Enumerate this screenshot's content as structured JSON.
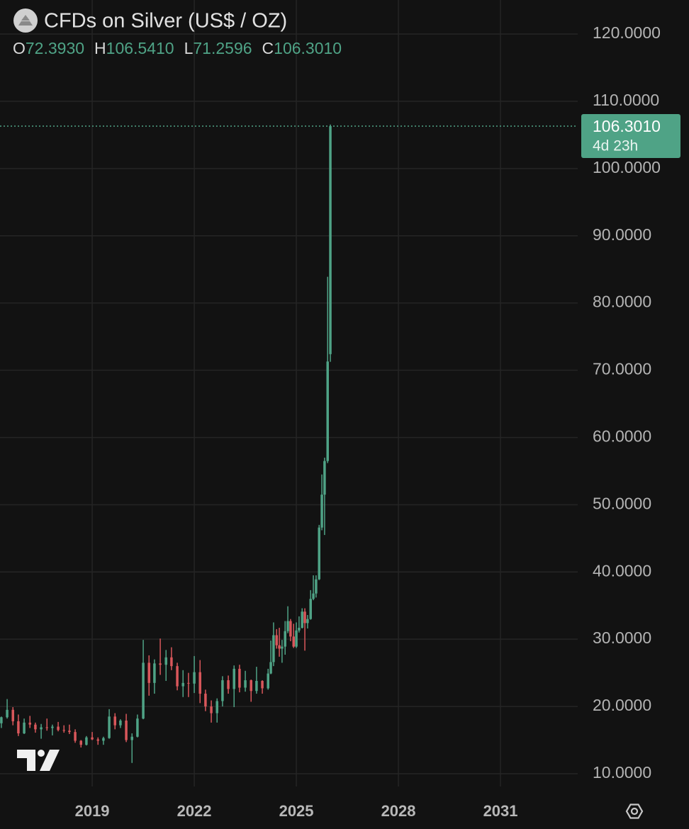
{
  "chart_data": {
    "type": "candlestick",
    "title": "CFDs on Silver (US$ / OZ)",
    "ohlc_legend": [
      {
        "key": "O",
        "value": 72.393,
        "label": "72.3930"
      },
      {
        "key": "H",
        "value": 106.541,
        "label": "106.5410"
      },
      {
        "key": "L",
        "value": 71.2596,
        "label": "71.2596"
      },
      {
        "key": "C",
        "value": 106.301,
        "label": "106.3010"
      }
    ],
    "last_price": {
      "value": 106.301,
      "label": "106.3010"
    },
    "countdown": "4d 23h",
    "up_color": "#4fa386",
    "down_color": "#d9575b",
    "grid": true,
    "x": [
      2016.33,
      2016.5,
      2016.67,
      2016.83,
      2017.0,
      2017.17,
      2017.33,
      2017.5,
      2017.67,
      2017.83,
      2018.0,
      2018.17,
      2018.33,
      2018.5,
      2018.67,
      2018.83,
      2019.0,
      2019.17,
      2019.33,
      2019.5,
      2019.67,
      2019.83,
      2020.0,
      2020.17,
      2020.33,
      2020.5,
      2020.67,
      2020.83,
      2021.0,
      2021.17,
      2021.33,
      2021.5,
      2021.67,
      2021.83,
      2022.0,
      2022.17,
      2022.33,
      2022.5,
      2022.67,
      2022.83,
      2023.0,
      2023.17,
      2023.33,
      2023.5,
      2023.67,
      2023.83,
      2024.0,
      2024.17,
      2024.25,
      2024.33,
      2024.42,
      2024.5,
      2024.58,
      2024.67,
      2024.75,
      2024.83,
      2024.92,
      2025.0,
      2025.08,
      2025.17,
      2025.25,
      2025.33,
      2025.42,
      2025.5,
      2025.58,
      2025.67,
      2025.75,
      2025.83,
      2025.92,
      2026.0
    ],
    "open": [
      17.5,
      18.4,
      19.5,
      17.8,
      16.0,
      17.6,
      17.3,
      16.6,
      16.9,
      16.8,
      17.0,
      16.5,
      16.4,
      16.2,
      14.9,
      14.3,
      15.4,
      15.1,
      14.9,
      15.3,
      18.5,
      17.2,
      17.9,
      15.0,
      15.5,
      18.2,
      26.5,
      23.5,
      26.4,
      26.2,
      27.3,
      26.0,
      23.0,
      23.5,
      23.4,
      25.1,
      21.9,
      20.0,
      19.0,
      20.8,
      23.9,
      22.6,
      25.6,
      22.8,
      23.9,
      22.3,
      23.8,
      22.7,
      24.9,
      26.6,
      30.6,
      29.1,
      28.6,
      28.9,
      31.2,
      32.7,
      30.4,
      28.9,
      31.3,
      31.7,
      34.1,
      32.4,
      33.0,
      36.0,
      36.8,
      38.9,
      46.6,
      51.5,
      56.5,
      72.393
    ],
    "high": [
      18.5,
      21.1,
      19.9,
      18.8,
      18.2,
      18.6,
      17.6,
      17.4,
      18.2,
      17.3,
      17.7,
      17.2,
      17.3,
      16.6,
      15.0,
      15.6,
      16.2,
      15.4,
      15.5,
      19.6,
      19.0,
      18.1,
      18.9,
      16.0,
      18.8,
      29.9,
      27.6,
      27.0,
      30.1,
      28.4,
      28.8,
      26.5,
      25.4,
      25.0,
      27.5,
      26.9,
      22.5,
      20.9,
      21.2,
      24.5,
      24.6,
      26.1,
      26.2,
      25.3,
      24.0,
      25.9,
      23.9,
      25.6,
      29.8,
      32.5,
      31.5,
      31.7,
      29.9,
      32.7,
      34.9,
      33.0,
      32.3,
      32.5,
      33.4,
      34.6,
      34.6,
      33.6,
      37.3,
      39.5,
      39.5,
      47.0,
      54.5,
      57.0,
      83.9,
      106.541
    ],
    "low": [
      16.8,
      18.2,
      17.2,
      15.6,
      15.9,
      16.8,
      16.1,
      15.2,
      16.4,
      15.7,
      16.3,
      16.1,
      15.9,
      14.6,
      13.9,
      14.2,
      15.0,
      14.3,
      14.3,
      15.2,
      16.6,
      16.8,
      14.7,
      11.6,
      15.4,
      18.1,
      21.6,
      21.9,
      24.7,
      23.8,
      25.4,
      22.4,
      21.4,
      21.4,
      22.0,
      20.5,
      19.3,
      17.6,
      17.6,
      20.0,
      21.9,
      19.9,
      22.1,
      22.2,
      20.7,
      21.9,
      21.9,
      22.5,
      24.8,
      26.0,
      28.6,
      27.4,
      26.5,
      27.7,
      30.9,
      29.7,
      28.7,
      28.7,
      31.0,
      31.6,
      28.3,
      31.6,
      32.9,
      35.8,
      36.2,
      38.8,
      46.2,
      45.5,
      56.2,
      71.2596
    ],
    "close": [
      18.4,
      19.5,
      17.8,
      16.0,
      17.6,
      17.3,
      16.6,
      16.9,
      16.8,
      17.0,
      16.5,
      16.4,
      16.2,
      14.9,
      14.3,
      15.4,
      15.1,
      14.9,
      15.3,
      18.5,
      17.2,
      17.9,
      15.0,
      15.5,
      18.2,
      26.5,
      23.5,
      26.4,
      26.2,
      27.3,
      26.0,
      23.0,
      23.5,
      23.4,
      25.1,
      21.9,
      20.0,
      19.0,
      20.8,
      23.9,
      22.6,
      25.6,
      22.8,
      23.9,
      22.3,
      23.8,
      22.7,
      24.9,
      26.6,
      30.6,
      29.1,
      28.6,
      28.9,
      31.2,
      32.7,
      30.4,
      28.9,
      31.3,
      31.7,
      34.1,
      32.4,
      33.0,
      36.0,
      36.8,
      38.9,
      46.6,
      51.5,
      56.5,
      71.3,
      106.301
    ],
    "xlim": [
      2016.29,
      2033.27
    ],
    "ylim": [
      8.1,
      125.06
    ],
    "xticks": [
      2019,
      2022,
      2025,
      2028,
      2031
    ],
    "yticks": [
      {
        "value": 10,
        "label": "10.0000"
      },
      {
        "value": 20,
        "label": "20.0000"
      },
      {
        "value": 30,
        "label": "30.0000"
      },
      {
        "value": 40,
        "label": "40.0000"
      },
      {
        "value": 50,
        "label": "50.0000"
      },
      {
        "value": 60,
        "label": "60.0000"
      },
      {
        "value": 70,
        "label": "70.0000"
      },
      {
        "value": 80,
        "label": "80.0000"
      },
      {
        "value": 90,
        "label": "90.0000"
      },
      {
        "value": 100,
        "label": "100.0000"
      },
      {
        "value": 110,
        "label": "110.0000"
      },
      {
        "value": 120,
        "label": "120.0000"
      }
    ]
  }
}
